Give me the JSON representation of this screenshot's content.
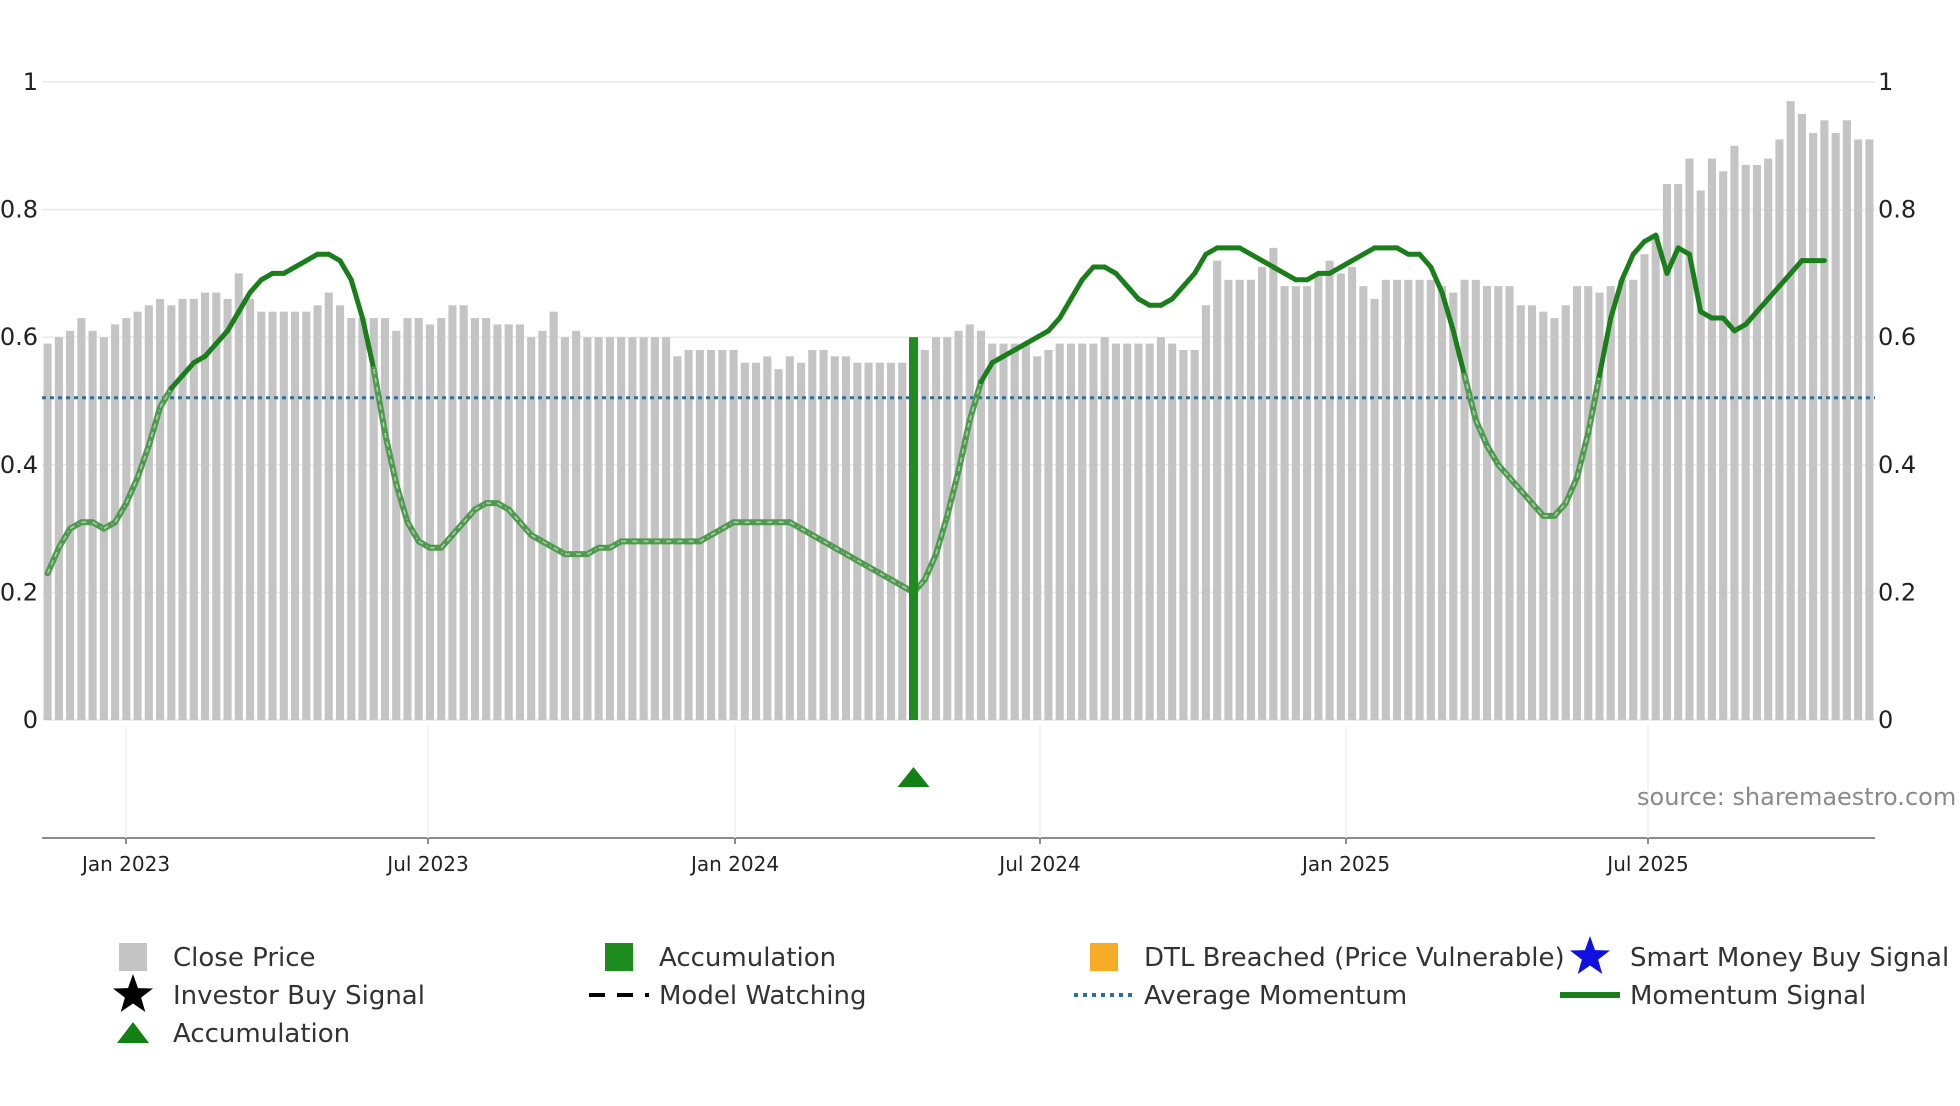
{
  "chart_data": {
    "type": "bar",
    "title": "",
    "xlabel": "",
    "ylabel": "",
    "ylim": [
      0,
      1
    ],
    "yticks": [
      "0",
      "0.2",
      "0.4",
      "0.6",
      "0.8",
      "1"
    ],
    "x_ticks": [
      "Jan 2023",
      "Jul 2023",
      "Jan 2024",
      "Jul 2024",
      "Jan 2025",
      "Jul 2025"
    ],
    "source_text": "source: sharemaestro.com",
    "colors": {
      "close_price": "#c4c4c4",
      "accumulation": "#1e8c1e",
      "momentum": "#1a7f1a",
      "average_momentum": "#2e6f96",
      "dtl": "#f7ac25",
      "smart_money": "#1010e0",
      "investor": "#000000",
      "triangle": "#138013"
    },
    "series": [
      {
        "name": "Close Price",
        "type": "bar",
        "values": [
          0.59,
          0.6,
          0.61,
          0.63,
          0.61,
          0.6,
          0.62,
          0.63,
          0.64,
          0.65,
          0.66,
          0.65,
          0.66,
          0.66,
          0.67,
          0.67,
          0.66,
          0.7,
          0.66,
          0.64,
          0.64,
          0.64,
          0.64,
          0.64,
          0.65,
          0.67,
          0.65,
          0.63,
          0.63,
          0.63,
          0.63,
          0.61,
          0.63,
          0.63,
          0.62,
          0.63,
          0.65,
          0.65,
          0.63,
          0.63,
          0.62,
          0.62,
          0.62,
          0.6,
          0.61,
          0.64,
          0.6,
          0.61,
          0.6,
          0.6,
          0.6,
          0.6,
          0.6,
          0.6,
          0.6,
          0.6,
          0.57,
          0.58,
          0.58,
          0.58,
          0.58,
          0.58,
          0.56,
          0.56,
          0.57,
          0.55,
          0.57,
          0.56,
          0.58,
          0.58,
          0.57,
          0.57,
          0.56,
          0.56,
          0.56,
          0.56,
          0.56,
          0.56,
          0.58,
          0.6,
          0.6,
          0.61,
          0.62,
          0.61,
          0.59,
          0.59,
          0.59,
          0.59,
          0.57,
          0.58,
          0.59,
          0.59,
          0.59,
          0.59,
          0.6,
          0.59,
          0.59,
          0.59,
          0.59,
          0.6,
          0.59,
          0.58,
          0.58,
          0.65,
          0.72,
          0.69,
          0.69,
          0.69,
          0.71,
          0.74,
          0.68,
          0.68,
          0.68,
          0.7,
          0.72,
          0.7,
          0.71,
          0.68,
          0.66,
          0.69,
          0.69,
          0.69,
          0.69,
          0.69,
          0.68,
          0.67,
          0.69,
          0.69,
          0.68,
          0.68,
          0.68,
          0.65,
          0.65,
          0.64,
          0.63,
          0.65,
          0.68,
          0.68,
          0.67,
          0.68,
          0.69,
          0.69,
          0.73,
          0.76,
          0.84,
          0.84,
          0.88,
          0.83,
          0.88,
          0.86,
          0.9,
          0.87,
          0.87,
          0.88,
          0.91,
          0.97,
          0.95,
          0.92,
          0.94,
          0.92,
          0.94,
          0.91,
          0.91
        ]
      },
      {
        "name": "Momentum Signal",
        "type": "line",
        "values": [
          0.23,
          0.27,
          0.3,
          0.31,
          0.31,
          0.3,
          0.31,
          0.34,
          0.38,
          0.43,
          0.49,
          0.52,
          0.54,
          0.56,
          0.57,
          0.59,
          0.61,
          0.64,
          0.67,
          0.69,
          0.7,
          0.7,
          0.71,
          0.72,
          0.73,
          0.73,
          0.72,
          0.69,
          0.63,
          0.55,
          0.45,
          0.37,
          0.31,
          0.28,
          0.27,
          0.27,
          0.29,
          0.31,
          0.33,
          0.34,
          0.34,
          0.33,
          0.31,
          0.29,
          0.28,
          0.27,
          0.26,
          0.26,
          0.26,
          0.27,
          0.27,
          0.28,
          0.28,
          0.28,
          0.28,
          0.28,
          0.28,
          0.28,
          0.28,
          0.29,
          0.3,
          0.31,
          0.31,
          0.31,
          0.31,
          0.31,
          0.31,
          0.3,
          0.29,
          0.28,
          0.27,
          0.26,
          0.25,
          0.24,
          0.23,
          0.22,
          0.21,
          0.2,
          0.22,
          0.26,
          0.32,
          0.39,
          0.47,
          0.53,
          0.56,
          0.57,
          0.58,
          0.59,
          0.6,
          0.61,
          0.63,
          0.66,
          0.69,
          0.71,
          0.71,
          0.7,
          0.68,
          0.66,
          0.65,
          0.65,
          0.66,
          0.68,
          0.7,
          0.73,
          0.74,
          0.74,
          0.74,
          0.73,
          0.72,
          0.71,
          0.7,
          0.69,
          0.69,
          0.7,
          0.7,
          0.71,
          0.72,
          0.73,
          0.74,
          0.74,
          0.74,
          0.73,
          0.73,
          0.71,
          0.67,
          0.61,
          0.54,
          0.47,
          0.43,
          0.4,
          0.38,
          0.36,
          0.34,
          0.32,
          0.32,
          0.34,
          0.38,
          0.45,
          0.54,
          0.63,
          0.69,
          0.73,
          0.75,
          0.76,
          0.7,
          0.74,
          0.73,
          0.64,
          0.63,
          0.63,
          0.61,
          0.62,
          0.64,
          0.66,
          0.68,
          0.7,
          0.72,
          0.72,
          0.72
        ]
      },
      {
        "name": "Average Momentum",
        "type": "line",
        "value": 0.505
      }
    ],
    "accumulation_bar": {
      "index": 77,
      "value": 0.6
    },
    "accumulation_marker": {
      "index": 77
    },
    "legend": [
      {
        "label": "Close Price",
        "symbol": "square",
        "color_key": "close_price"
      },
      {
        "label": "Accumulation",
        "symbol": "square",
        "color_key": "accumulation"
      },
      {
        "label": "DTL Breached (Price Vulnerable)",
        "symbol": "square",
        "color_key": "dtl"
      },
      {
        "label": "Smart Money Buy Signal",
        "symbol": "star",
        "color_key": "smart_money"
      },
      {
        "label": "Investor Buy Signal",
        "symbol": "star",
        "color_key": "investor"
      },
      {
        "label": "Model Watching",
        "symbol": "dash",
        "color_key": "investor"
      },
      {
        "label": "Average Momentum",
        "symbol": "dotted",
        "color_key": "average_momentum"
      },
      {
        "label": "Momentum Signal",
        "symbol": "line",
        "color_key": "momentum"
      },
      {
        "label": "Accumulation",
        "symbol": "triangle",
        "color_key": "triangle"
      }
    ]
  }
}
